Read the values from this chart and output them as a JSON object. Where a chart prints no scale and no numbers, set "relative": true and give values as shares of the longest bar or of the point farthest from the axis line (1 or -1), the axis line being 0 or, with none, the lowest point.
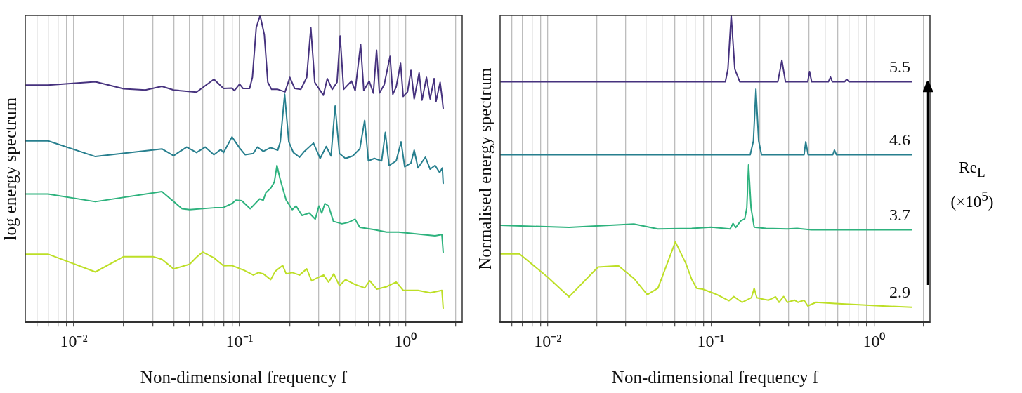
{
  "chart_data": [
    {
      "type": "line",
      "relative": true,
      "ylabel": "log energy spectrum",
      "xlabel": "Non-dimensional frequency f",
      "log": "x",
      "grid": "x",
      "marker": "none",
      "line_style": "solid",
      "xlim": [
        0.0051,
        2.2
      ],
      "xticks": [
        {
          "value": 0.006,
          "label": null
        },
        {
          "value": 0.007,
          "label": null
        },
        {
          "value": 0.008,
          "label": null
        },
        {
          "value": 0.009,
          "label": null
        },
        {
          "value": 0.01,
          "label": "10⁻²"
        },
        {
          "value": 0.02,
          "label": null
        },
        {
          "value": 0.03,
          "label": null
        },
        {
          "value": 0.04,
          "label": null
        },
        {
          "value": 0.05,
          "label": null
        },
        {
          "value": 0.06,
          "label": null
        },
        {
          "value": 0.07,
          "label": null
        },
        {
          "value": 0.08,
          "label": null
        },
        {
          "value": 0.09,
          "label": null
        },
        {
          "value": 0.1,
          "label": "10⁻¹"
        },
        {
          "value": 0.2,
          "label": null
        },
        {
          "value": 0.3,
          "label": null
        },
        {
          "value": 0.4,
          "label": null
        },
        {
          "value": 0.5,
          "label": null
        },
        {
          "value": 0.6,
          "label": null
        },
        {
          "value": 0.7,
          "label": null
        },
        {
          "value": 0.8,
          "label": null
        },
        {
          "value": 0.9,
          "label": null
        },
        {
          "value": 1,
          "label": "10⁰"
        },
        {
          "value": 2,
          "label": null
        }
      ],
      "series": [
        {
          "color": "#46327e",
          "x": [
            0.0051,
            0.007,
            0.0135,
            0.02,
            0.027,
            0.034,
            0.04,
            0.055,
            0.07,
            0.08,
            0.09,
            0.093,
            0.1,
            0.105,
            0.115,
            0.1195,
            0.126,
            0.133,
            0.141,
            0.148,
            0.156,
            0.17,
            0.188,
            0.201,
            0.215,
            0.234,
            0.254,
            0.269,
            0.284,
            0.32,
            0.338,
            0.362,
            0.387,
            0.404,
            0.424,
            0.473,
            0.498,
            0.537,
            0.561,
            0.605,
            0.641,
            0.67,
            0.697,
            0.745,
            0.808,
            0.84,
            0.88,
            0.935,
            0.97,
            1.03,
            1.08,
            1.13,
            1.21,
            1.26,
            1.34,
            1.41,
            1.49,
            1.53,
            1.62,
            1.66,
            1.69
          ],
          "values": [
            0.773,
            0.773,
            0.784,
            0.761,
            0.757,
            0.769,
            0.757,
            0.75,
            0.792,
            0.762,
            0.763,
            0.755,
            0.776,
            0.762,
            0.762,
            0.798,
            0.96,
            1,
            0.937,
            0.782,
            0.759,
            0.759,
            0.751,
            0.798,
            0.762,
            0.759,
            0.798,
            0.96,
            0.782,
            0.74,
            0.794,
            0.759,
            0.782,
            0.933,
            0.759,
            0.786,
            0.755,
            0.906,
            0.755,
            0.786,
            0.747,
            0.887,
            0.747,
            0.774,
            0.867,
            0.743,
            0.767,
            0.844,
            0.736,
            0.751,
            0.821,
            0.728,
            0.813,
            0.724,
            0.798,
            0.728,
            0.794,
            0.72,
            0.782,
            0.736,
            0.697
          ]
        },
        {
          "color": "#277f8e",
          "x": [
            0.0051,
            0.007,
            0.0135,
            0.034,
            0.04,
            0.048,
            0.055,
            0.062,
            0.07,
            0.077,
            0.08,
            0.09,
            0.1,
            0.108,
            0.121,
            0.128,
            0.139,
            0.154,
            0.17,
            0.176,
            0.187,
            0.198,
            0.211,
            0.23,
            0.246,
            0.279,
            0.306,
            0.333,
            0.356,
            0.377,
            0.4,
            0.435,
            0.481,
            0.531,
            0.568,
            0.598,
            0.65,
            0.719,
            0.757,
            0.797,
            0.88,
            0.942,
            0.99,
            1.08,
            1.13,
            1.19,
            1.32,
            1.41,
            1.51,
            1.61,
            1.67,
            1.69
          ],
          "values": [
            0.591,
            0.591,
            0.54,
            0.565,
            0.543,
            0.571,
            0.553,
            0.571,
            0.546,
            0.563,
            0.553,
            0.604,
            0.568,
            0.546,
            0.55,
            0.571,
            0.557,
            0.569,
            0.561,
            0.588,
            0.743,
            0.588,
            0.553,
            0.538,
            0.557,
            0.584,
            0.534,
            0.573,
            0.542,
            0.705,
            0.55,
            0.534,
            0.542,
            0.565,
            0.658,
            0.526,
            0.534,
            0.526,
            0.619,
            0.511,
            0.526,
            0.588,
            0.507,
            0.519,
            0.561,
            0.503,
            0.538,
            0.499,
            0.511,
            0.488,
            0.503,
            0.453
          ]
        },
        {
          "color": "#2db27d",
          "x": [
            0.0051,
            0.007,
            0.0135,
            0.034,
            0.045,
            0.05,
            0.07,
            0.08,
            0.09,
            0.095,
            0.103,
            0.116,
            0.132,
            0.139,
            0.144,
            0.154,
            0.162,
            0.168,
            0.176,
            0.191,
            0.208,
            0.219,
            0.238,
            0.263,
            0.286,
            0.301,
            0.313,
            0.327,
            0.344,
            0.368,
            0.414,
            0.45,
            0.497,
            0.531,
            0.65,
            0.77,
            0.91,
            1.08,
            1.27,
            1.51,
            1.66,
            1.69
          ],
          "values": [
            0.418,
            0.418,
            0.393,
            0.426,
            0.37,
            0.367,
            0.373,
            0.374,
            0.387,
            0.398,
            0.396,
            0.37,
            0.402,
            0.398,
            0.422,
            0.437,
            0.457,
            0.511,
            0.464,
            0.398,
            0.367,
            0.379,
            0.348,
            0.356,
            0.336,
            0.379,
            0.356,
            0.387,
            0.379,
            0.329,
            0.321,
            0.325,
            0.336,
            0.309,
            0.302,
            0.294,
            0.294,
            0.29,
            0.286,
            0.282,
            0.286,
            0.228
          ]
        },
        {
          "color": "#bddf26",
          "x": [
            0.0051,
            0.007,
            0.0135,
            0.02,
            0.03,
            0.034,
            0.04,
            0.05,
            0.055,
            0.06,
            0.07,
            0.08,
            0.09,
            0.1,
            0.106,
            0.121,
            0.13,
            0.139,
            0.154,
            0.164,
            0.182,
            0.191,
            0.208,
            0.23,
            0.254,
            0.272,
            0.29,
            0.321,
            0.344,
            0.37,
            0.4,
            0.435,
            0.497,
            0.568,
            0.61,
            0.672,
            0.77,
            0.88,
            0.97,
            1.19,
            1.41,
            1.66,
            1.69
          ],
          "values": [
            0.222,
            0.222,
            0.164,
            0.214,
            0.214,
            0.205,
            0.174,
            0.189,
            0.212,
            0.229,
            0.21,
            0.184,
            0.185,
            0.175,
            0.17,
            0.154,
            0.162,
            0.158,
            0.139,
            0.166,
            0.185,
            0.158,
            0.162,
            0.154,
            0.174,
            0.135,
            0.143,
            0.154,
            0.131,
            0.158,
            0.119,
            0.139,
            0.123,
            0.112,
            0.135,
            0.108,
            0.116,
            0.131,
            0.104,
            0.104,
            0.096,
            0.104,
            0.046
          ]
        }
      ]
    },
    {
      "type": "line",
      "relative": true,
      "ylabel": "Normalised energy spectrum",
      "xlabel": "Non-dimensional frequency f",
      "legend_title": "Re$_{L}$ (×10$^{5}$)",
      "log": "x",
      "grid": "x",
      "marker": "none",
      "line_style": "solid",
      "xlim": [
        0.0051,
        2.2
      ],
      "xticks": [
        {
          "value": 0.006,
          "label": null
        },
        {
          "value": 0.007,
          "label": null
        },
        {
          "value": 0.008,
          "label": null
        },
        {
          "value": 0.009,
          "label": null
        },
        {
          "value": 0.01,
          "label": "10⁻²"
        },
        {
          "value": 0.02,
          "label": null
        },
        {
          "value": 0.03,
          "label": null
        },
        {
          "value": 0.04,
          "label": null
        },
        {
          "value": 0.05,
          "label": null
        },
        {
          "value": 0.06,
          "label": null
        },
        {
          "value": 0.07,
          "label": null
        },
        {
          "value": 0.08,
          "label": null
        },
        {
          "value": 0.09,
          "label": null
        },
        {
          "value": 0.1,
          "label": "10⁻¹"
        },
        {
          "value": 0.2,
          "label": null
        },
        {
          "value": 0.3,
          "label": null
        },
        {
          "value": 0.4,
          "label": null
        },
        {
          "value": 0.5,
          "label": null
        },
        {
          "value": 0.6,
          "label": null
        },
        {
          "value": 0.7,
          "label": null
        },
        {
          "value": 0.8,
          "label": null
        },
        {
          "value": 0.9,
          "label": null
        },
        {
          "value": 1,
          "label": "10⁰"
        },
        {
          "value": 2,
          "label": null
        }
      ],
      "series": [
        {
          "name": "5.5",
          "color": "#46327e",
          "x": [
            0.0051,
            0.1225,
            0.127,
            0.133,
            0.14,
            0.15,
            0.257,
            0.272,
            0.286,
            0.392,
            0.402,
            0.414,
            0.525,
            0.54,
            0.554,
            0.66,
            0.679,
            0.7,
            1.7
          ],
          "values": [
            0.784,
            0.784,
            0.825,
            1,
            0.825,
            0.784,
            0.784,
            0.854,
            0.784,
            0.784,
            0.817,
            0.784,
            0.784,
            0.799,
            0.784,
            0.784,
            0.792,
            0.784,
            0.784
          ]
        },
        {
          "name": "4.6",
          "color": "#277f8e",
          "x": [
            0.0051,
            0.174,
            0.182,
            0.1885,
            0.196,
            0.204,
            0.372,
            0.381,
            0.394,
            0.558,
            0.571,
            0.587,
            1.7
          ],
          "values": [
            0.546,
            0.546,
            0.591,
            0.76,
            0.591,
            0.546,
            0.546,
            0.588,
            0.546,
            0.546,
            0.561,
            0.546,
            0.546
          ]
        },
        {
          "name": "3.7",
          "color": "#2db27d",
          "x": [
            0.0051,
            0.0135,
            0.0337,
            0.0473,
            0.0762,
            0.1,
            0.131,
            0.1364,
            0.142,
            0.152,
            0.161,
            0.1658,
            0.17,
            0.176,
            0.184,
            0.217,
            0.294,
            0.337,
            0.412,
            1.7
          ],
          "values": [
            0.316,
            0.309,
            0.32,
            0.304,
            0.306,
            0.31,
            0.304,
            0.322,
            0.309,
            0.33,
            0.337,
            0.373,
            0.513,
            0.373,
            0.31,
            0.306,
            0.304,
            0.306,
            0.301,
            0.301
          ]
        },
        {
          "name": "2.9",
          "color": "#bddf26",
          "x": [
            0.0051,
            0.0067,
            0.01,
            0.0135,
            0.0203,
            0.0271,
            0.0337,
            0.0407,
            0.0473,
            0.0605,
            0.07,
            0.0762,
            0.0817,
            0.089,
            0.107,
            0.129,
            0.138,
            0.155,
            0.177,
            0.184,
            0.191,
            0.21,
            0.225,
            0.249,
            0.261,
            0.279,
            0.294,
            0.325,
            0.342,
            0.372,
            0.392,
            0.441,
            0.577,
            0.81,
            1.13,
            1.7
          ],
          "values": [
            0.223,
            0.223,
            0.147,
            0.083,
            0.18,
            0.184,
            0.143,
            0.09,
            0.111,
            0.262,
            0.193,
            0.14,
            0.111,
            0.108,
            0.092,
            0.07,
            0.084,
            0.065,
            0.08,
            0.111,
            0.08,
            0.075,
            0.072,
            0.083,
            0.065,
            0.084,
            0.065,
            0.072,
            0.065,
            0.072,
            0.053,
            0.065,
            0.061,
            0.057,
            0.053,
            0.049
          ]
        }
      ]
    }
  ]
}
